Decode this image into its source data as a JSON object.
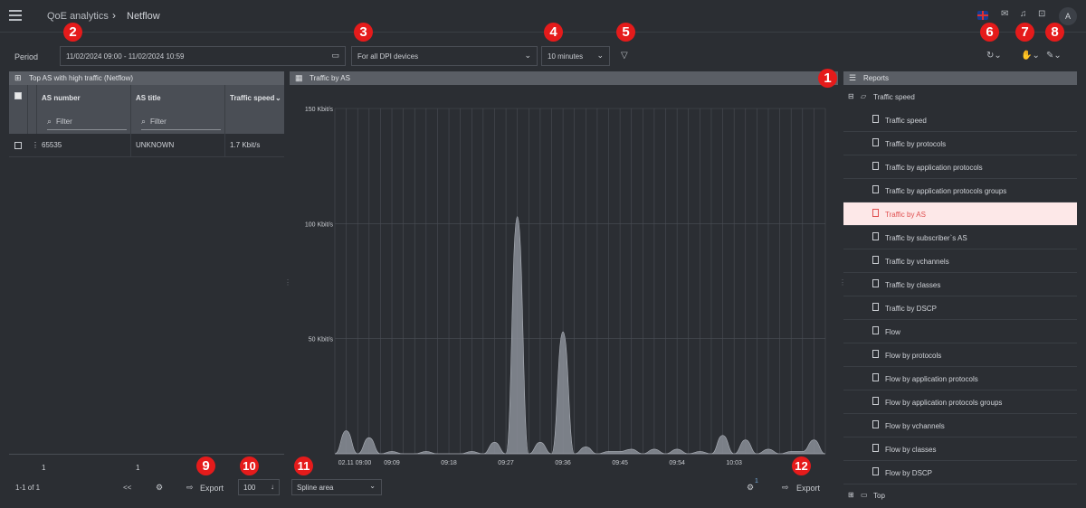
{
  "header": {
    "breadcrumb": [
      "QoE analytics",
      "Netflow"
    ],
    "avatar_letter": "A",
    "icons": [
      "menu-icon",
      "language-flag-icon",
      "mail-icon",
      "bell-icon",
      "lock-icon"
    ]
  },
  "toolbar": {
    "period_label": "Period",
    "period_value": "11/02/2024 09:00 - 11/02/2024 10:59",
    "devices_value": "For all DPI devices",
    "interval_value": "10 minutes"
  },
  "left_panel": {
    "title": "Top AS with high traffic (Netflow)",
    "columns": [
      "AS number",
      "AS title",
      "Traffic speed"
    ],
    "filter_placeholder": "Filter",
    "rows": [
      {
        "as_number": "65535",
        "as_title": "UNKNOWN",
        "traffic_speed": "1.7 Kbit/s"
      }
    ],
    "footer_counts": [
      "1",
      "1"
    ],
    "pagination": "1-1 of 1",
    "first_page": "<<",
    "export_label": "Export",
    "page_size": "100"
  },
  "chart_panel": {
    "title": "Traffic by AS",
    "chart_type_select": "Spline area",
    "export_label": "Export",
    "settings_badge": "1"
  },
  "chart_data": {
    "type": "area",
    "title": "",
    "xlabel": "",
    "ylabel": "",
    "y_ticks": [
      "150 Kbit/s",
      "100 Kbit/s",
      "50 Kbit/s"
    ],
    "ylim": [
      0,
      150
    ],
    "x_ticks": [
      "02.11 09:00",
      "09:09",
      "09:18",
      "09:27",
      "09:36",
      "09:45",
      "09:54",
      "10:03"
    ],
    "series": [
      {
        "values": [
          0,
          10,
          0,
          7,
          0,
          1,
          0,
          0,
          1,
          0,
          0,
          0,
          1,
          0,
          5,
          0,
          103,
          0,
          5,
          0,
          53,
          0,
          3,
          0,
          1,
          1,
          2,
          0,
          2,
          0,
          2,
          0,
          1,
          0,
          8,
          0,
          6,
          0,
          2,
          0,
          1,
          1,
          6,
          0
        ]
      }
    ],
    "color": "#8a8e98",
    "grid": true
  },
  "reports": {
    "title": "Reports",
    "group": "Traffic speed",
    "items": [
      "Traffic speed",
      "Traffic by protocols",
      "Traffic by application protocols",
      "Traffic by application protocols groups",
      "Traffic by AS",
      "Traffic by subscriber`s AS",
      "Traffic by vchannels",
      "Traffic by classes",
      "Traffic by DSCP",
      "Flow",
      "Flow by protocols",
      "Flow by application protocols",
      "Flow by application protocols groups",
      "Flow by vchannels",
      "Flow by classes",
      "Flow by DSCP"
    ],
    "active": "Traffic by AS",
    "next_group": "Top"
  },
  "badges": [
    "1",
    "2",
    "3",
    "4",
    "5",
    "6",
    "7",
    "8",
    "9",
    "10",
    "11",
    "12"
  ]
}
